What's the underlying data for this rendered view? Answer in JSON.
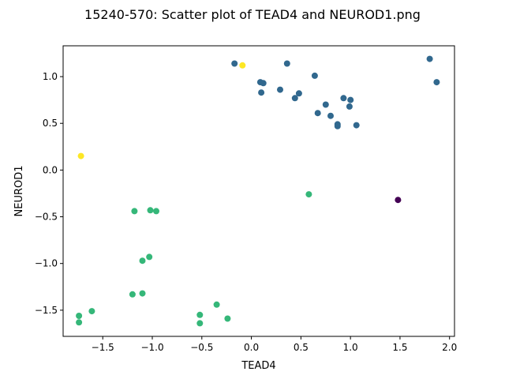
{
  "chart_data": {
    "type": "scatter",
    "title": "15240-570: Scatter plot of TEAD4 and NEUROD1.png",
    "xlabel": "TEAD4",
    "ylabel": "NEUROD1",
    "xlim": [
      -1.9,
      2.05
    ],
    "ylim": [
      -1.78,
      1.33
    ],
    "xticks": [
      -1.5,
      -1.0,
      -0.5,
      0.0,
      0.5,
      1.0,
      1.5,
      2.0
    ],
    "xtick_labels": [
      "−1.5",
      "−1.0",
      "−0.5",
      "0.0",
      "0.5",
      "1.0",
      "1.5",
      "2.0"
    ],
    "yticks": [
      -1.5,
      -1.0,
      -0.5,
      0.0,
      0.5,
      1.0
    ],
    "ytick_labels": [
      "−1.5",
      "−1.0",
      "−0.5",
      "0.0",
      "0.5",
      "1.0"
    ],
    "grid": false,
    "legend": "none",
    "colors": {
      "blue": "#31688e",
      "green": "#35b779",
      "yellow": "#fde725",
      "purple": "#440154"
    },
    "points": [
      {
        "x": -0.17,
        "y": 1.14,
        "color": "blue"
      },
      {
        "x": 0.36,
        "y": 1.14,
        "color": "blue"
      },
      {
        "x": 1.8,
        "y": 1.19,
        "color": "blue"
      },
      {
        "x": 0.64,
        "y": 1.01,
        "color": "blue"
      },
      {
        "x": 0.09,
        "y": 0.94,
        "color": "blue"
      },
      {
        "x": 0.12,
        "y": 0.93,
        "color": "blue"
      },
      {
        "x": 1.87,
        "y": 0.94,
        "color": "blue"
      },
      {
        "x": 0.29,
        "y": 0.86,
        "color": "blue"
      },
      {
        "x": 0.1,
        "y": 0.83,
        "color": "blue"
      },
      {
        "x": 0.48,
        "y": 0.82,
        "color": "blue"
      },
      {
        "x": 0.44,
        "y": 0.77,
        "color": "blue"
      },
      {
        "x": 0.93,
        "y": 0.77,
        "color": "blue"
      },
      {
        "x": 1.0,
        "y": 0.75,
        "color": "blue"
      },
      {
        "x": 0.75,
        "y": 0.7,
        "color": "blue"
      },
      {
        "x": 0.99,
        "y": 0.68,
        "color": "blue"
      },
      {
        "x": 0.67,
        "y": 0.61,
        "color": "blue"
      },
      {
        "x": 0.8,
        "y": 0.58,
        "color": "blue"
      },
      {
        "x": 0.87,
        "y": 0.49,
        "color": "blue"
      },
      {
        "x": 0.87,
        "y": 0.47,
        "color": "blue"
      },
      {
        "x": 1.06,
        "y": 0.48,
        "color": "blue"
      },
      {
        "x": -0.09,
        "y": 1.12,
        "color": "yellow"
      },
      {
        "x": -1.72,
        "y": 0.15,
        "color": "yellow"
      },
      {
        "x": 1.48,
        "y": -0.32,
        "color": "purple"
      },
      {
        "x": 0.58,
        "y": -0.26,
        "color": "green"
      },
      {
        "x": -1.18,
        "y": -0.44,
        "color": "green"
      },
      {
        "x": -1.02,
        "y": -0.43,
        "color": "green"
      },
      {
        "x": -0.96,
        "y": -0.44,
        "color": "green"
      },
      {
        "x": -1.03,
        "y": -0.93,
        "color": "green"
      },
      {
        "x": -1.1,
        "y": -0.97,
        "color": "green"
      },
      {
        "x": -1.2,
        "y": -1.33,
        "color": "green"
      },
      {
        "x": -1.1,
        "y": -1.32,
        "color": "green"
      },
      {
        "x": -1.61,
        "y": -1.51,
        "color": "green"
      },
      {
        "x": -1.74,
        "y": -1.56,
        "color": "green"
      },
      {
        "x": -1.74,
        "y": -1.63,
        "color": "green"
      },
      {
        "x": -0.35,
        "y": -1.44,
        "color": "green"
      },
      {
        "x": -0.52,
        "y": -1.55,
        "color": "green"
      },
      {
        "x": -0.52,
        "y": -1.64,
        "color": "green"
      },
      {
        "x": -0.24,
        "y": -1.59,
        "color": "green"
      }
    ]
  }
}
